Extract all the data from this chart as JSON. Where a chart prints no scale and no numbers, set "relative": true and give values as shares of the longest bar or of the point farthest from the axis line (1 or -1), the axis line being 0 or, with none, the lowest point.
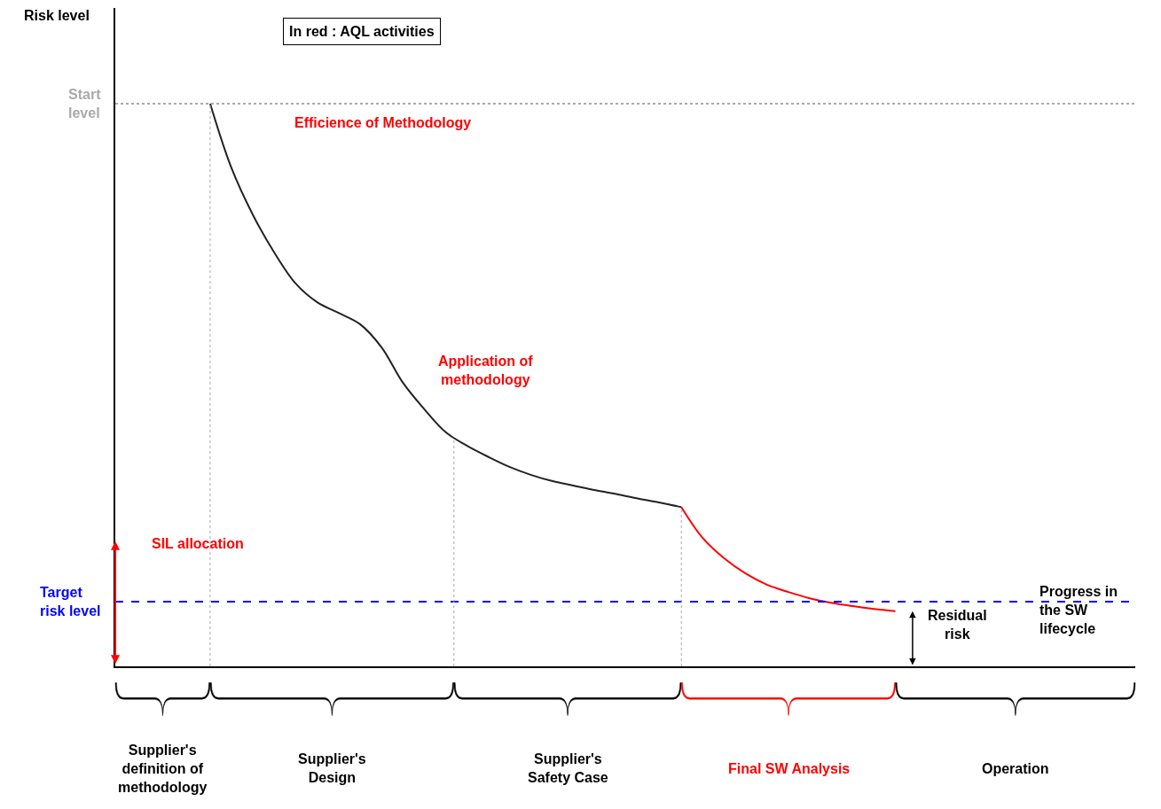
{
  "chart_data": {
    "type": "line",
    "relative": true,
    "categories": [
      null,
      null,
      null,
      null,
      null,
      null,
      null,
      null,
      null,
      null,
      null,
      null,
      null,
      null,
      null,
      null,
      null,
      null,
      null,
      null,
      null,
      null,
      null,
      null,
      null,
      null,
      null,
      null,
      null,
      null,
      null,
      null,
      null
    ],
    "series": [
      {
        "color": "#222222",
        "values": [
          1.0,
          0.885,
          0.802,
          0.735,
          0.68,
          0.647,
          0.628,
          0.608,
          0.567,
          0.504,
          0.457,
          0.416,
          0.392,
          0.372,
          0.354,
          0.34,
          0.329,
          0.321,
          0.313,
          0.306,
          0.298,
          0.291,
          0.283,
          null,
          null,
          null,
          null,
          null,
          null,
          null,
          null,
          null,
          null
        ]
      },
      {
        "color": "#ff0000",
        "values": [
          null,
          null,
          null,
          null,
          null,
          null,
          null,
          null,
          null,
          null,
          null,
          null,
          null,
          null,
          null,
          null,
          null,
          null,
          null,
          null,
          null,
          null,
          0.283,
          0.228,
          0.192,
          0.165,
          0.145,
          0.132,
          0.121,
          0.113,
          0.107,
          0.102,
          0.098
        ]
      }
    ],
    "ref_lines": [
      {
        "axis": "y",
        "value": 1.0,
        "label": "Start\nlevel",
        "color": "#aaaaaa",
        "line_style": "dotted"
      },
      {
        "axis": "y",
        "value": 0.115,
        "label": "Target\nrisk level",
        "color": "#0000ff",
        "line_style": "dashed"
      }
    ],
    "annotations": [
      "In red : AQL activities",
      "Efficience of Methodology",
      "Application of\nmethodology",
      "SIL allocation",
      "Residual\nrisk",
      "Risk level",
      "Progress in\nthe SW\nlifecycle",
      "Supplier's\ndefinition of\nmethodology",
      "Supplier's\nDesign",
      "Supplier's\nSafety Case",
      "Final SW Analysis",
      "Operation"
    ],
    "legend": false
  }
}
